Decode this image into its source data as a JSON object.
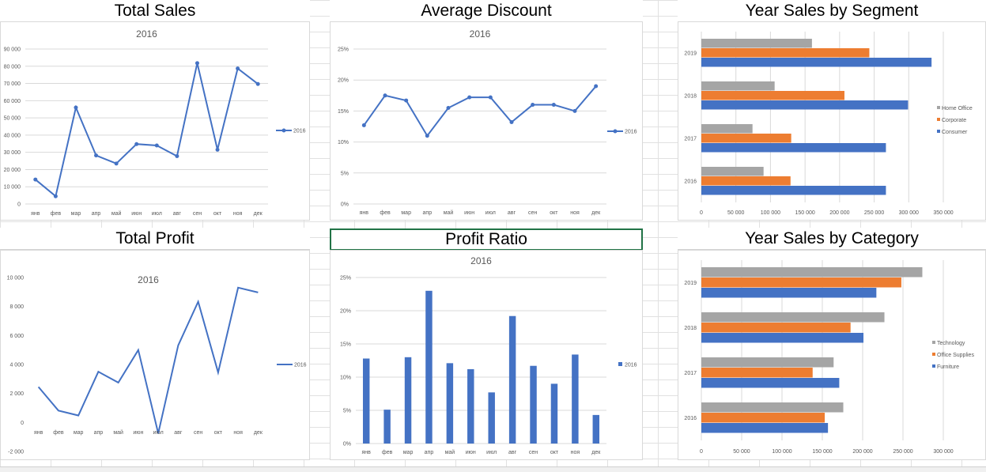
{
  "months": [
    "янв",
    "фев",
    "мар",
    "апр",
    "май",
    "июн",
    "июл",
    "авг",
    "сен",
    "окт",
    "ноя",
    "дек"
  ],
  "colors": {
    "blue": "#4472c4",
    "orange": "#ed7d31",
    "gray": "#a5a5a5",
    "grid": "#d9d9d9",
    "axis_text": "#595959"
  },
  "chart_data": [
    {
      "id": "total-sales",
      "type": "line",
      "title": "Total Sales",
      "subtitle": "2016",
      "ylim": [
        0,
        90000
      ],
      "yticks": [
        0,
        10000,
        20000,
        30000,
        40000,
        50000,
        60000,
        70000,
        80000,
        90000
      ],
      "ytick_labels": [
        "0",
        "10 000",
        "20 000",
        "30 000",
        "40 000",
        "50 000",
        "60 000",
        "70 000",
        "80 000",
        "90 000"
      ],
      "markers": true,
      "grid": true,
      "legend": "right",
      "series": [
        {
          "name": "2016",
          "values": [
            14200,
            4500,
            56000,
            28200,
            23500,
            34800,
            34000,
            27800,
            81800,
            31500,
            78700,
            69700
          ]
        }
      ]
    },
    {
      "id": "average-discount",
      "type": "line",
      "title": "Average Discount",
      "subtitle": "2016",
      "ylim": [
        0,
        0.25
      ],
      "yticks": [
        0,
        0.05,
        0.1,
        0.15,
        0.2,
        0.25
      ],
      "ytick_labels": [
        "0%",
        "5%",
        "10%",
        "15%",
        "20%",
        "25%"
      ],
      "markers": true,
      "grid": true,
      "legend": "right",
      "series": [
        {
          "name": "2016",
          "values": [
            0.127,
            0.175,
            0.167,
            0.11,
            0.155,
            0.172,
            0.172,
            0.132,
            0.16,
            0.16,
            0.15,
            0.19
          ]
        }
      ]
    },
    {
      "id": "year-sales-by-segment",
      "type": "bar",
      "orientation": "horizontal",
      "title": "Year Sales by Segment",
      "categories": [
        "2016",
        "2017",
        "2018",
        "2019"
      ],
      "xlim": [
        0,
        350000
      ],
      "xticks": [
        0,
        50000,
        100000,
        150000,
        200000,
        250000,
        300000,
        350000
      ],
      "xtick_labels": [
        "0",
        "50 000",
        "100 000",
        "150 000",
        "200 000",
        "250 000",
        "300 000",
        "350 000"
      ],
      "grid": true,
      "legend": "right",
      "series": [
        {
          "name": "Home Office",
          "color": "#a5a5a5",
          "values": [
            90000,
            74000,
            106000,
            160000
          ]
        },
        {
          "name": "Corporate",
          "color": "#ed7d31",
          "values": [
            129000,
            130000,
            207000,
            243000
          ]
        },
        {
          "name": "Consumer",
          "color": "#4472c4",
          "values": [
            267000,
            267000,
            299000,
            333000
          ]
        }
      ]
    },
    {
      "id": "total-profit",
      "type": "line",
      "title": "Total Profit",
      "subtitle": "2016",
      "ylim": [
        -2000,
        10000
      ],
      "yticks": [
        -2000,
        0,
        2000,
        4000,
        6000,
        8000,
        10000
      ],
      "ytick_labels": [
        "-2 000",
        "0",
        "2 000",
        "4 000",
        "6 000",
        "8 000",
        "10 000"
      ],
      "markers": false,
      "grid": false,
      "legend": "right",
      "series": [
        {
          "name": "2016",
          "values": [
            2450,
            820,
            480,
            3500,
            2750,
            5000,
            -750,
            5320,
            8330,
            3450,
            9300,
            8970
          ]
        }
      ]
    },
    {
      "id": "profit-ratio",
      "type": "bar",
      "title": "Profit Ratio",
      "subtitle": "2016",
      "ylim": [
        0,
        0.25
      ],
      "yticks": [
        0,
        0.05,
        0.1,
        0.15,
        0.2,
        0.25
      ],
      "ytick_labels": [
        "0%",
        "5%",
        "10%",
        "15%",
        "20%",
        "25%"
      ],
      "grid": true,
      "legend": "right",
      "series": [
        {
          "name": "2016",
          "values": [
            0.128,
            0.051,
            0.13,
            0.23,
            0.121,
            0.112,
            0.077,
            0.192,
            0.117,
            0.09,
            0.134,
            0.043
          ]
        }
      ]
    },
    {
      "id": "year-sales-by-category",
      "type": "bar",
      "orientation": "horizontal",
      "title": "Year Sales by Category",
      "categories": [
        "2016",
        "2017",
        "2018",
        "2019"
      ],
      "xlim": [
        0,
        300000
      ],
      "xticks": [
        0,
        50000,
        100000,
        150000,
        200000,
        250000,
        300000
      ],
      "xtick_labels": [
        "0",
        "50 000",
        "100 000",
        "150 000",
        "200 000",
        "250 000",
        "300 000"
      ],
      "grid": true,
      "legend": "right",
      "series": [
        {
          "name": "Technology",
          "color": "#a5a5a5",
          "values": [
            176000,
            164000,
            227000,
            274000
          ]
        },
        {
          "name": "Office Supplies",
          "color": "#ed7d31",
          "values": [
            153000,
            138000,
            185000,
            248000
          ]
        },
        {
          "name": "Furniture",
          "color": "#4472c4",
          "values": [
            157000,
            171000,
            201000,
            217000
          ]
        }
      ]
    }
  ]
}
